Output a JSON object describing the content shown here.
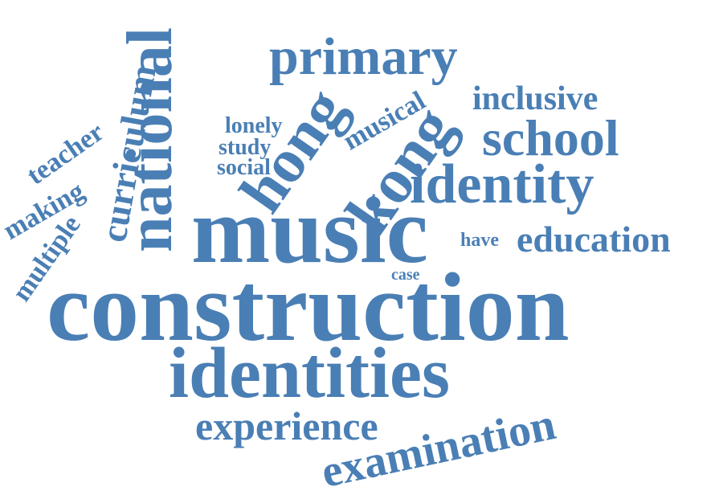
{
  "word_cloud": {
    "text_color": "#4a7fb5",
    "background_color": "#ffffff",
    "words": {
      "construction": "construction",
      "music": "music",
      "identities": "identities",
      "primary": "primary",
      "national": "national",
      "identity": "identity",
      "hong": "hong",
      "kong": "kong",
      "school": "school",
      "examination": "examination",
      "experience": "experience",
      "education": "education",
      "inclusive": "inclusive",
      "curriculum": "curriculum",
      "musical": "musical",
      "multiple": "multiple",
      "making": "making",
      "teacher": "teacher",
      "lonely": "lonely",
      "study": "study",
      "social": "social",
      "have": "have",
      "case": "case"
    }
  }
}
